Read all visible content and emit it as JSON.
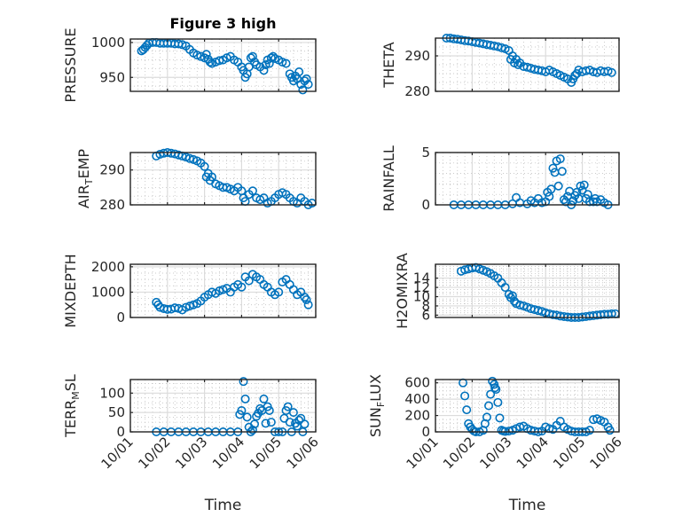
{
  "chart_data": [
    {
      "type": "scatter",
      "title": "Figure 3 high",
      "ylabel": "PRESSURE",
      "xlabel": "",
      "xlim": [
        0,
        5
      ],
      "ylim": [
        930,
        1005
      ],
      "yticks": [
        950,
        1000
      ],
      "yticklabels": [
        "950",
        "1000"
      ],
      "grid": true,
      "series": [
        {
          "name": "PRESSURE",
          "x": [
            0.3,
            0.35,
            0.4,
            0.45,
            0.5,
            0.6,
            0.7,
            0.8,
            0.9,
            1.0,
            1.1,
            1.2,
            1.3,
            1.4,
            1.5,
            1.6,
            1.7,
            1.8,
            1.9,
            2.0,
            2.05,
            2.1,
            2.15,
            2.2,
            2.3,
            2.4,
            2.5,
            2.6,
            2.7,
            2.8,
            2.9,
            3.0,
            3.05,
            3.1,
            3.15,
            3.2,
            3.25,
            3.3,
            3.35,
            3.4,
            3.5,
            3.6,
            3.65,
            3.7,
            3.75,
            3.8,
            3.85,
            3.9,
            4.0,
            4.1,
            4.2,
            4.3,
            4.35,
            4.4,
            4.45,
            4.5,
            4.55,
            4.6,
            4.65,
            4.7,
            4.75,
            4.8
          ],
          "y": [
            988,
            990,
            993,
            996,
            999,
            1000,
            1000,
            999,
            999,
            999,
            999,
            998,
            998,
            997,
            995,
            990,
            985,
            982,
            980,
            978,
            983,
            976,
            972,
            970,
            972,
            974,
            975,
            978,
            980,
            975,
            972,
            965,
            960,
            950,
            955,
            965,
            978,
            980,
            972,
            968,
            965,
            960,
            968,
            975,
            970,
            978,
            980,
            977,
            975,
            972,
            970,
            955,
            950,
            945,
            952,
            948,
            958,
            940,
            932,
            945,
            948,
            940
          ]
        }
      ]
    },
    {
      "type": "scatter",
      "ylabel": "THETA",
      "xlabel": "",
      "xlim": [
        0,
        5
      ],
      "ylim": [
        280,
        295
      ],
      "yticks": [
        280,
        290
      ],
      "yticklabels": [
        "280",
        "290"
      ],
      "grid": true,
      "series": [
        {
          "name": "THETA",
          "x": [
            0.3,
            0.4,
            0.5,
            0.6,
            0.7,
            0.8,
            0.9,
            1.0,
            1.1,
            1.2,
            1.3,
            1.4,
            1.5,
            1.6,
            1.7,
            1.8,
            1.9,
            2.0,
            2.05,
            2.1,
            2.15,
            2.2,
            2.25,
            2.3,
            2.4,
            2.5,
            2.6,
            2.7,
            2.8,
            2.9,
            3.0,
            3.1,
            3.2,
            3.3,
            3.4,
            3.5,
            3.6,
            3.7,
            3.75,
            3.8,
            3.85,
            3.9,
            4.0,
            4.1,
            4.2,
            4.3,
            4.4,
            4.5,
            4.6,
            4.7,
            4.8
          ],
          "y": [
            295,
            295,
            294.8,
            294.7,
            294.5,
            294.3,
            294.2,
            294,
            293.8,
            293.6,
            293.4,
            293.2,
            293,
            292.8,
            292.6,
            292.3,
            292,
            291.5,
            289,
            290,
            288,
            289,
            287.5,
            288,
            287,
            286.8,
            286.5,
            286.2,
            286,
            285.8,
            285.5,
            286,
            285.5,
            285,
            284.5,
            284,
            283.5,
            282.5,
            283.5,
            284.5,
            285,
            286,
            285.5,
            285.8,
            286,
            285.5,
            285.3,
            285.8,
            285.5,
            285.7,
            285.3
          ]
        }
      ]
    },
    {
      "type": "scatter",
      "ylabel": "AIR_TEMP",
      "xlabel": "",
      "xlim": [
        0,
        5
      ],
      "ylim": [
        280,
        295
      ],
      "yticks": [
        280,
        290
      ],
      "yticklabels": [
        "280",
        "290"
      ],
      "grid": true,
      "series": [
        {
          "name": "AIR_TEMP",
          "x": [
            0.7,
            0.8,
            0.9,
            1.0,
            1.1,
            1.2,
            1.3,
            1.4,
            1.5,
            1.6,
            1.7,
            1.8,
            1.9,
            2.0,
            2.05,
            2.1,
            2.15,
            2.2,
            2.3,
            2.4,
            2.5,
            2.6,
            2.7,
            2.8,
            2.9,
            3.0,
            3.05,
            3.1,
            3.2,
            3.3,
            3.4,
            3.5,
            3.6,
            3.7,
            3.8,
            3.9,
            4.0,
            4.1,
            4.2,
            4.3,
            4.4,
            4.5,
            4.6,
            4.7,
            4.8,
            4.9
          ],
          "y": [
            294,
            294.5,
            294.8,
            295,
            294.8,
            294.6,
            294.3,
            294,
            293.7,
            293.3,
            293,
            292.6,
            292,
            291,
            288,
            289,
            287,
            288,
            286,
            285.5,
            285,
            285,
            284.5,
            284,
            285,
            284,
            282,
            281,
            283,
            284,
            282,
            281.5,
            282,
            280.5,
            281,
            282,
            283,
            283.5,
            283,
            282,
            281,
            280.5,
            282,
            281,
            280,
            280.5
          ]
        }
      ]
    },
    {
      "type": "scatter",
      "ylabel": "RAINFALL",
      "xlabel": "",
      "xlim": [
        0,
        5
      ],
      "ylim": [
        0,
        5
      ],
      "yticks": [
        0,
        5
      ],
      "yticklabels": [
        "0",
        "5"
      ],
      "grid": true,
      "series": [
        {
          "name": "RAINFALL",
          "x": [
            0.5,
            0.7,
            0.9,
            1.1,
            1.3,
            1.5,
            1.7,
            1.9,
            2.1,
            2.2,
            2.3,
            2.5,
            2.6,
            2.7,
            2.8,
            2.9,
            3.0,
            3.05,
            3.1,
            3.15,
            3.2,
            3.25,
            3.3,
            3.35,
            3.4,
            3.45,
            3.5,
            3.55,
            3.6,
            3.65,
            3.7,
            3.75,
            3.8,
            3.85,
            3.9,
            3.95,
            4.0,
            4.05,
            4.1,
            4.15,
            4.2,
            4.3,
            4.35,
            4.4,
            4.5,
            4.6,
            4.7
          ],
          "y": [
            0,
            0,
            0,
            0,
            0,
            0,
            0,
            0,
            0.1,
            0.7,
            0.2,
            0.1,
            0.4,
            0.2,
            0.6,
            0.2,
            0.3,
            1.2,
            0.8,
            1.5,
            3.5,
            3.1,
            4.2,
            1.8,
            4.4,
            3.2,
            0.5,
            0.3,
            0.8,
            1.3,
            0.0,
            0.4,
            0.9,
            1.2,
            0.6,
            1.8,
            1.4,
            1.9,
            0.6,
            1.0,
            0.3,
            0.3,
            0.6,
            0.3,
            0.5,
            0.2,
            0.0
          ]
        }
      ]
    },
    {
      "type": "scatter",
      "ylabel": "MIXDEPTH",
      "xlabel": "",
      "xlim": [
        0,
        5
      ],
      "ylim": [
        0,
        2100
      ],
      "yticks": [
        0,
        1000,
        2000
      ],
      "yticklabels": [
        "0",
        "1000",
        "2000"
      ],
      "grid": true,
      "series": [
        {
          "name": "MIXDEPTH",
          "x": [
            0.7,
            0.75,
            0.8,
            0.9,
            1.0,
            1.1,
            1.2,
            1.3,
            1.4,
            1.5,
            1.6,
            1.7,
            1.8,
            1.9,
            2.0,
            2.1,
            2.2,
            2.3,
            2.4,
            2.5,
            2.6,
            2.7,
            2.8,
            2.9,
            3.0,
            3.1,
            3.2,
            3.3,
            3.4,
            3.5,
            3.6,
            3.7,
            3.8,
            3.9,
            4.0,
            4.1,
            4.2,
            4.3,
            4.4,
            4.5,
            4.6,
            4.7,
            4.75,
            4.8
          ],
          "y": [
            600,
            500,
            400,
            350,
            320,
            330,
            380,
            360,
            300,
            400,
            450,
            500,
            550,
            650,
            800,
            900,
            1000,
            950,
            1050,
            1100,
            1150,
            1000,
            1200,
            1300,
            1200,
            1600,
            1450,
            1700,
            1600,
            1500,
            1300,
            1200,
            1000,
            900,
            1000,
            1400,
            1500,
            1300,
            1100,
            900,
            1000,
            800,
            700,
            500
          ]
        }
      ]
    },
    {
      "type": "scatter",
      "ylabel": "H2OMIXRA",
      "xlabel": "",
      "xlim": [
        0,
        5
      ],
      "ylim": [
        5.5,
        17
      ],
      "yticks": [
        6,
        8,
        10,
        12,
        14
      ],
      "yticklabels": [
        "6",
        "8",
        "10",
        "12",
        "14"
      ],
      "grid": true,
      "series": [
        {
          "name": "H2OMIXRA",
          "x": [
            0.7,
            0.8,
            0.9,
            1.0,
            1.1,
            1.2,
            1.3,
            1.4,
            1.5,
            1.6,
            1.7,
            1.8,
            1.9,
            2.0,
            2.05,
            2.1,
            2.15,
            2.2,
            2.3,
            2.4,
            2.5,
            2.6,
            2.7,
            2.8,
            2.9,
            3.0,
            3.1,
            3.2,
            3.3,
            3.4,
            3.5,
            3.6,
            3.7,
            3.8,
            3.9,
            4.0,
            4.1,
            4.2,
            4.3,
            4.4,
            4.5,
            4.6,
            4.7,
            4.8,
            4.9
          ],
          "y": [
            15.5,
            15.8,
            16,
            16.2,
            16.3,
            16,
            15.7,
            15.4,
            15,
            14.5,
            14,
            13,
            12,
            10.5,
            9.8,
            10.2,
            9,
            8.5,
            8.2,
            8,
            7.7,
            7.4,
            7.2,
            7,
            6.8,
            6.5,
            6.3,
            6.1,
            6,
            5.8,
            5.7,
            5.6,
            5.5,
            5.5,
            5.5,
            5.6,
            5.7,
            5.8,
            5.9,
            6,
            6.1,
            6.2,
            6.2,
            6.3,
            6.3
          ]
        }
      ]
    },
    {
      "type": "scatter",
      "ylabel": "TERR_MSL",
      "xlabel": "Time",
      "xlim": [
        0,
        5
      ],
      "ylim": [
        0,
        135
      ],
      "yticks": [
        0,
        50,
        100
      ],
      "yticklabels": [
        "0",
        "50",
        "100"
      ],
      "xticklabels": [
        "10/01",
        "10/02",
        "10/03",
        "10/04",
        "10/05",
        "10/06"
      ],
      "grid": true,
      "series": [
        {
          "name": "TERR_MSL",
          "x": [
            0.7,
            0.9,
            1.1,
            1.3,
            1.5,
            1.7,
            1.9,
            2.1,
            2.3,
            2.5,
            2.7,
            2.9,
            2.95,
            3.0,
            3.05,
            3.1,
            3.15,
            3.2,
            3.25,
            3.3,
            3.35,
            3.4,
            3.45,
            3.5,
            3.55,
            3.6,
            3.65,
            3.7,
            3.75,
            3.8,
            3.9,
            4.0,
            4.1,
            4.15,
            4.2,
            4.25,
            4.3,
            4.35,
            4.4,
            4.45,
            4.5,
            4.55,
            4.6,
            4.65,
            4.7
          ],
          "y": [
            0,
            0,
            0,
            0,
            0,
            0,
            0,
            0,
            0,
            0,
            0,
            0,
            45,
            55,
            130,
            85,
            38,
            12,
            0,
            5,
            20,
            40,
            48,
            60,
            55,
            85,
            22,
            65,
            55,
            25,
            0,
            0,
            0,
            35,
            55,
            65,
            25,
            0,
            50,
            22,
            15,
            30,
            35,
            0,
            20
          ]
        }
      ]
    },
    {
      "type": "scatter",
      "ylabel": "SUN_FLUX",
      "xlabel": "Time",
      "xlim": [
        0,
        5
      ],
      "ylim": [
        0,
        640
      ],
      "yticks": [
        0,
        200,
        400,
        600
      ],
      "yticklabels": [
        "0",
        "200",
        "400",
        "600"
      ],
      "xticklabels": [
        "10/01",
        "10/02",
        "10/03",
        "10/04",
        "10/05",
        "10/06"
      ],
      "grid": true,
      "series": [
        {
          "name": "SUN_FLUX",
          "x": [
            0.75,
            0.8,
            0.85,
            0.9,
            0.95,
            1.0,
            1.05,
            1.1,
            1.2,
            1.3,
            1.35,
            1.4,
            1.45,
            1.5,
            1.55,
            1.6,
            1.62,
            1.65,
            1.7,
            1.75,
            1.8,
            1.85,
            1.9,
            2.0,
            2.1,
            2.2,
            2.3,
            2.4,
            2.5,
            2.6,
            2.7,
            2.8,
            2.9,
            3.0,
            3.1,
            3.2,
            3.3,
            3.4,
            3.5,
            3.6,
            3.7,
            3.8,
            3.9,
            4.0,
            4.1,
            4.2,
            4.3,
            4.4,
            4.5,
            4.6,
            4.7,
            4.75
          ],
          "y": [
            600,
            440,
            270,
            100,
            60,
            30,
            10,
            0,
            0,
            20,
            100,
            180,
            320,
            460,
            620,
            580,
            540,
            520,
            360,
            170,
            20,
            10,
            5,
            10,
            20,
            40,
            60,
            70,
            40,
            20,
            10,
            0,
            10,
            60,
            40,
            30,
            80,
            130,
            60,
            30,
            10,
            0,
            0,
            0,
            0,
            20,
            150,
            160,
            140,
            120,
            60,
            20
          ]
        }
      ]
    }
  ]
}
